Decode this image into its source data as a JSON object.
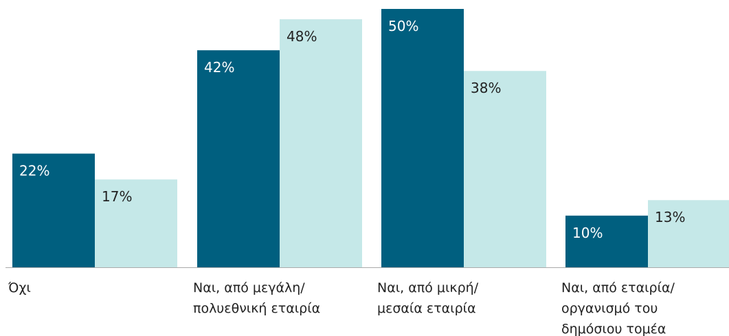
{
  "chart_data": {
    "type": "bar",
    "categories": [
      [
        "Όχι"
      ],
      [
        "Ναι, από μεγάλη/",
        "πολυεθνική εταιρία"
      ],
      [
        "Ναι, από μικρή/",
        "μεσαία εταιρία"
      ],
      [
        "Ναι, από εταιρία/",
        "οργανισμό του",
        "δημόσιου τομέα"
      ]
    ],
    "series": [
      {
        "values": [
          22,
          42,
          50,
          10
        ],
        "labels": [
          "22%",
          "42%",
          "50%",
          "10%"
        ],
        "color": "#005f7f",
        "label_color": "#ffffff"
      },
      {
        "values": [
          17,
          48,
          38,
          13
        ],
        "labels": [
          "17%",
          "48%",
          "38%",
          "13%"
        ],
        "color": "#c5e8e8",
        "label_color": "#222222"
      }
    ],
    "ylim": [
      0,
      50
    ],
    "grid": false,
    "baseline_color": "#aaaaaa"
  }
}
